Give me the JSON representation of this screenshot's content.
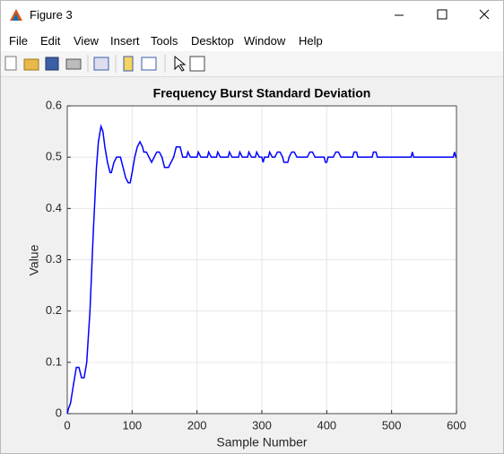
{
  "window": {
    "title": "Figure 3"
  },
  "menu": [
    "File",
    "Edit",
    "View",
    "Insert",
    "Tools",
    "Desktop",
    "Window",
    "Help"
  ],
  "chart_data": {
    "type": "line",
    "title": "Frequency Burst Standard Deviation",
    "x_label": "Sample Number",
    "y_label": "Value",
    "x": [
      0,
      2,
      5,
      10,
      14,
      18,
      22,
      26,
      30,
      35,
      40,
      45,
      48,
      52,
      55,
      58,
      62,
      66,
      68,
      72,
      76,
      82,
      86,
      90,
      94,
      97,
      100,
      104,
      108,
      112,
      116,
      118,
      122,
      126,
      130,
      134,
      138,
      142,
      146,
      150,
      156,
      160,
      164,
      168,
      174,
      178,
      184,
      186,
      190,
      200,
      202,
      206,
      216,
      218,
      222,
      230,
      232,
      236,
      248,
      250,
      254,
      264,
      266,
      270,
      278,
      280,
      284,
      290,
      292,
      296,
      300,
      302,
      304,
      310,
      312,
      316,
      320,
      324,
      328,
      332,
      334,
      340,
      342,
      346,
      350,
      354,
      370,
      374,
      378,
      382,
      396,
      398,
      400,
      402,
      410,
      414,
      418,
      422,
      440,
      442,
      446,
      448,
      470,
      472,
      476,
      478,
      530,
      532,
      534,
      595,
      597,
      599,
      600
    ],
    "values": [
      0,
      0.01,
      0.02,
      0.06,
      0.09,
      0.09,
      0.07,
      0.07,
      0.1,
      0.2,
      0.35,
      0.48,
      0.53,
      0.56,
      0.55,
      0.52,
      0.49,
      0.47,
      0.47,
      0.49,
      0.5,
      0.5,
      0.48,
      0.46,
      0.45,
      0.45,
      0.47,
      0.5,
      0.52,
      0.53,
      0.52,
      0.51,
      0.51,
      0.5,
      0.49,
      0.5,
      0.51,
      0.51,
      0.5,
      0.48,
      0.48,
      0.49,
      0.5,
      0.52,
      0.52,
      0.5,
      0.5,
      0.51,
      0.5,
      0.5,
      0.51,
      0.5,
      0.5,
      0.51,
      0.5,
      0.5,
      0.51,
      0.5,
      0.5,
      0.51,
      0.5,
      0.5,
      0.51,
      0.5,
      0.5,
      0.51,
      0.5,
      0.5,
      0.51,
      0.5,
      0.5,
      0.49,
      0.5,
      0.5,
      0.51,
      0.5,
      0.5,
      0.51,
      0.51,
      0.5,
      0.49,
      0.49,
      0.5,
      0.51,
      0.51,
      0.5,
      0.5,
      0.51,
      0.51,
      0.5,
      0.5,
      0.49,
      0.49,
      0.5,
      0.5,
      0.51,
      0.51,
      0.5,
      0.5,
      0.51,
      0.51,
      0.5,
      0.5,
      0.51,
      0.51,
      0.5,
      0.5,
      0.51,
      0.5,
      0.5,
      0.51,
      0.5,
      0.5
    ],
    "color": "#0000ff",
    "xlim": [
      0,
      600
    ],
    "xticks": [
      0,
      100,
      200,
      300,
      400,
      500,
      600
    ],
    "ylim": [
      0,
      0.6
    ],
    "yticks": [
      0,
      0.1,
      0.2,
      0.3,
      0.4,
      0.5,
      0.6
    ],
    "grid": true
  }
}
